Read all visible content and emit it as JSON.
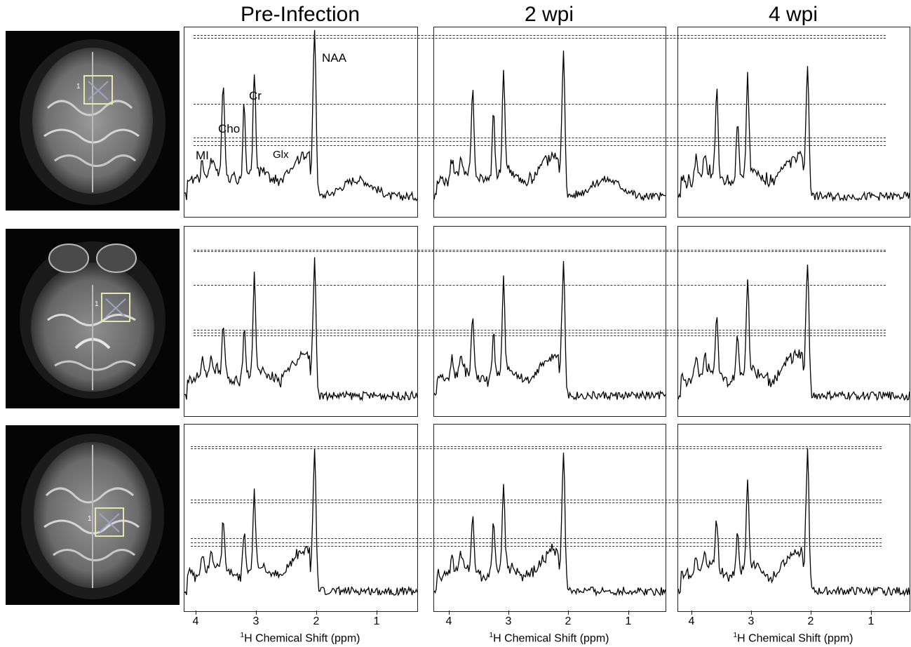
{
  "column_titles": [
    "Pre-Infection",
    "2 wpi",
    "4 wpi"
  ],
  "peak_labels": [
    "MI",
    "Cho",
    "Cr",
    "Glx",
    "NAA"
  ],
  "x_axis": {
    "label_superscript": "1",
    "label_rest": "H Chemical Shift (ppm)",
    "ticks": [
      "4",
      "3",
      "2",
      "1"
    ]
  },
  "mri_marker": "1",
  "chart_data": {
    "type": "line",
    "xlabel": "1H Chemical Shift (ppm)",
    "xlim": [
      4.2,
      0.3
    ],
    "x_reversed": true,
    "panels": [
      {
        "row": 1,
        "column": "Pre-Infection",
        "peaks_ppm": {
          "MI": 3.55,
          "Cho": 3.2,
          "Cr": 3.03,
          "NAA": 2.02
        },
        "peak_heights": {
          "MI": 0.55,
          "Cho": 0.45,
          "Cr": 0.62,
          "NAA": 1.0
        },
        "baseline_hump": true
      },
      {
        "row": 1,
        "column": "2 wpi",
        "peaks_ppm": {
          "MI": 3.55,
          "Cho": 3.2,
          "Cr": 3.03,
          "NAA": 2.02
        },
        "peak_heights": {
          "MI": 0.5,
          "Cho": 0.4,
          "Cr": 0.62,
          "NAA": 0.85
        },
        "baseline_hump": true
      },
      {
        "row": 1,
        "column": "4 wpi",
        "peaks_ppm": {
          "MI": 3.55,
          "Cho": 3.2,
          "Cr": 3.03,
          "NAA": 2.02
        },
        "peak_heights": {
          "MI": 0.5,
          "Cho": 0.35,
          "Cr": 0.58,
          "NAA": 0.78
        },
        "baseline_hump": false
      },
      {
        "row": 2,
        "column": "Pre-Infection",
        "peaks_ppm": {
          "MI": 3.55,
          "Cho": 3.2,
          "Cr": 3.03,
          "NAA": 2.02
        },
        "peak_heights": {
          "MI": 0.3,
          "Cho": 0.28,
          "Cr": 0.55,
          "NAA": 0.8
        },
        "baseline_hump": false
      },
      {
        "row": 2,
        "column": "2 wpi",
        "peaks_ppm": {
          "MI": 3.55,
          "Cho": 3.2,
          "Cr": 3.03,
          "NAA": 2.02
        },
        "peak_heights": {
          "MI": 0.35,
          "Cho": 0.28,
          "Cr": 0.55,
          "NAA": 0.8
        },
        "baseline_hump": false
      },
      {
        "row": 2,
        "column": "4 wpi",
        "peaks_ppm": {
          "MI": 3.55,
          "Cho": 3.2,
          "Cr": 3.03,
          "NAA": 2.02
        },
        "peak_heights": {
          "MI": 0.35,
          "Cho": 0.25,
          "Cr": 0.55,
          "NAA": 0.8
        },
        "baseline_hump": false
      },
      {
        "row": 3,
        "column": "Pre-Infection",
        "peaks_ppm": {
          "MI": 3.55,
          "Cho": 3.2,
          "Cr": 3.03,
          "NAA": 2.02
        },
        "peak_heights": {
          "MI": 0.28,
          "Cho": 0.24,
          "Cr": 0.45,
          "NAA": 0.85
        },
        "baseline_hump": false
      },
      {
        "row": 3,
        "column": "2 wpi",
        "peaks_ppm": {
          "MI": 3.55,
          "Cho": 3.2,
          "Cr": 3.03,
          "NAA": 2.02
        },
        "peak_heights": {
          "MI": 0.32,
          "Cho": 0.3,
          "Cr": 0.5,
          "NAA": 0.85
        },
        "baseline_hump": false
      },
      {
        "row": 3,
        "column": "4 wpi",
        "peaks_ppm": {
          "MI": 3.55,
          "Cho": 3.2,
          "Cr": 3.03,
          "NAA": 2.02
        },
        "peak_heights": {
          "MI": 0.3,
          "Cho": 0.26,
          "Cr": 0.55,
          "NAA": 0.85
        },
        "baseline_hump": false
      }
    ]
  }
}
